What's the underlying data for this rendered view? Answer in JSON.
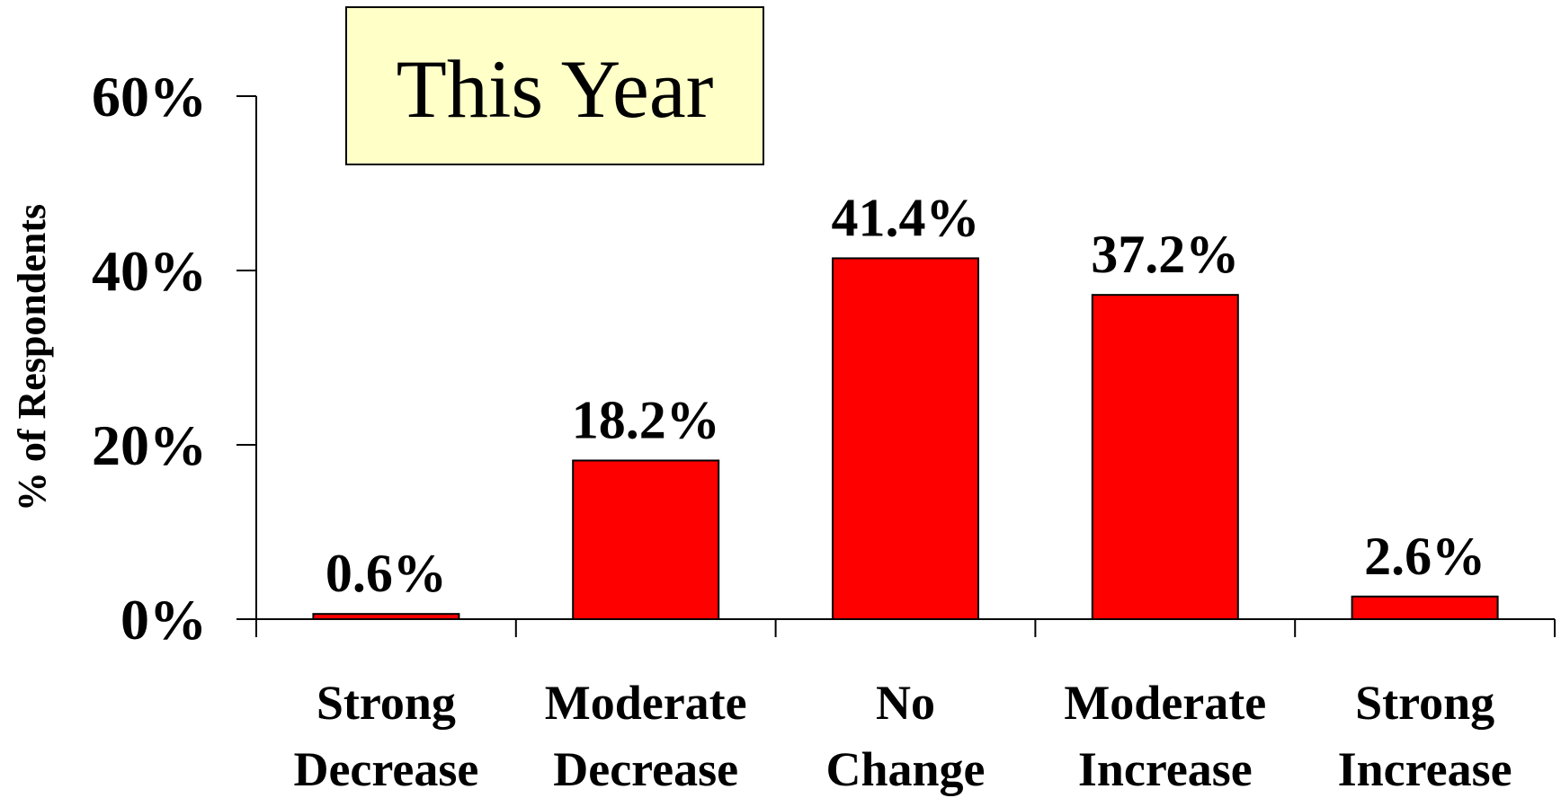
{
  "chart_data": {
    "type": "bar",
    "title": "This Year",
    "y_label": "% of Respondents",
    "categories": [
      "Strong Decrease",
      "Moderate Decrease",
      "No Change",
      "Moderate Increase",
      "Strong Increase"
    ],
    "values": [
      0.6,
      18.2,
      41.4,
      37.2,
      2.6
    ],
    "value_labels": [
      "0.6%",
      "18.2%",
      "41.4%",
      "37.2%",
      "2.6%"
    ],
    "color": "#ff0000",
    "ylim": [
      0,
      60
    ],
    "yticks": [
      {
        "value": 0,
        "label": "0%"
      },
      {
        "value": 20,
        "label": "20%"
      },
      {
        "value": 40,
        "label": "40%"
      },
      {
        "value": 60,
        "label": "60%"
      }
    ]
  }
}
